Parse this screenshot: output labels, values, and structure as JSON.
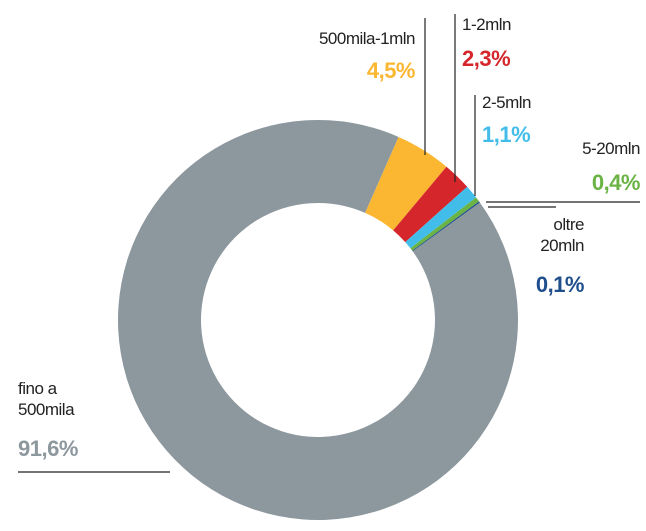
{
  "chart_data": {
    "type": "donut",
    "categories": [
      "fino a 500mila",
      "500mila-1mln",
      "1-2mln",
      "2-5mln",
      "5-20mln",
      "oltre 20mln"
    ],
    "values": [
      91.6,
      4.5,
      2.3,
      1.1,
      0.4,
      0.1
    ],
    "value_labels": [
      "91,6%",
      "4,5%",
      "2,3%",
      "1,1%",
      "0,4%",
      "0,1%"
    ],
    "colors": [
      "#8c979e",
      "#fbb731",
      "#d4262b",
      "#42bdea",
      "#6ab344",
      "#1f4e8c"
    ]
  }
}
